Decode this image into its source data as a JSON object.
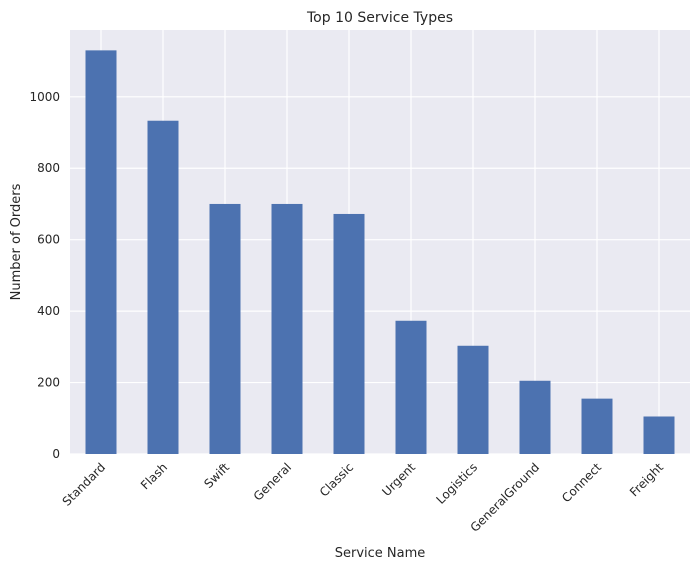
{
  "chart_data": {
    "type": "bar",
    "title": "Top 10 Service Types",
    "xlabel": "Service Name",
    "ylabel": "Number of Orders",
    "categories": [
      "Standard",
      "Flash",
      "Swift",
      "General",
      "Classic",
      "Urgent",
      "Logistics",
      "GeneralGround",
      "Connect",
      "Freight"
    ],
    "values": [
      1130,
      933,
      700,
      700,
      672,
      373,
      303,
      205,
      155,
      105
    ],
    "ylim": [
      0,
      1187
    ],
    "yticks": [
      0,
      200,
      400,
      600,
      800,
      1000
    ],
    "grid": true,
    "bar_color": "#4c72b0",
    "background_color": "#eaeaf2",
    "grid_color": "#ffffff"
  }
}
